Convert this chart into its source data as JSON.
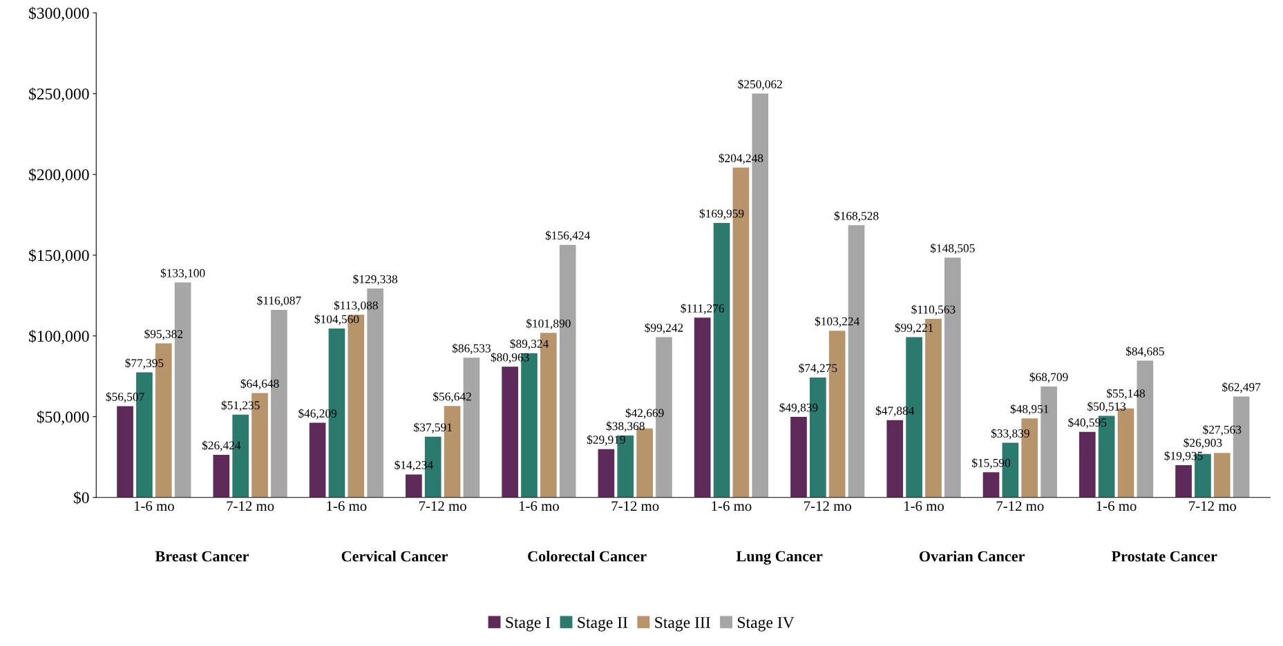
{
  "chart_data": {
    "type": "bar",
    "categories": [
      "1-6 mo",
      "7-12 mo",
      "1-6 mo",
      "7-12 mo",
      "1-6 mo",
      "7-12 mo",
      "1-6 mo",
      "7-12 mo",
      "1-6 mo",
      "7-12 mo",
      "1-6 mo",
      "7-12 mo"
    ],
    "annotations": [
      "Breast Cancer",
      "Cervical Cancer",
      "Colorectal Cancer",
      "Lung Cancer",
      "Ovarian Cancer",
      "Prostate Cancer"
    ],
    "series": [
      {
        "name": "Stage I",
        "color": "#5e2a5a",
        "values": [
          56507,
          26424,
          46209,
          14234,
          80963,
          29919,
          111276,
          49839,
          47884,
          15590,
          40595,
          19935
        ],
        "value_labels": [
          "$56,507",
          "$26,424",
          "$46,209",
          "$14,234",
          "$80,963",
          "$29,919",
          "$111,276",
          "$49,839",
          "$47,884",
          "$15,590",
          "$40,595",
          "$19,935"
        ]
      },
      {
        "name": "Stage II",
        "color": "#2a7a6e",
        "values": [
          77395,
          51235,
          104560,
          37591,
          89324,
          38368,
          169959,
          74275,
          99221,
          33839,
          50513,
          26903
        ],
        "value_labels": [
          "$77,395",
          "$51,235",
          "$104,560",
          "$37,591",
          "$89,324",
          "$38,368",
          "$169,959",
          "$74,275",
          "$99,221",
          "$33,839",
          "$50,513",
          "$26,903"
        ]
      },
      {
        "name": "Stage III",
        "color": "#b8946a",
        "values": [
          95382,
          64648,
          113088,
          56642,
          101890,
          42669,
          204248,
          103224,
          110563,
          48951,
          55148,
          27563
        ],
        "value_labels": [
          "$95,382",
          "$64,648",
          "$113,088",
          "$56,642",
          "$101,890",
          "$42,669",
          "$204,248",
          "$103,224",
          "$110,563",
          "$48,951",
          "$55,148",
          "$27,563"
        ]
      },
      {
        "name": "Stage IV",
        "color": "#a6a6a6",
        "values": [
          133100,
          116087,
          129338,
          86533,
          156424,
          99242,
          250062,
          168528,
          148505,
          68709,
          84685,
          62497
        ],
        "value_labels": [
          "$133,100",
          "$116,087",
          "$129,338",
          "$86,533",
          "$156,424",
          "$99,242",
          "$250,062",
          "$168,528",
          "$148,505",
          "$68,709",
          "$84,685",
          "$62,497"
        ]
      }
    ],
    "ylim": [
      0,
      300000
    ],
    "yticks": [
      {
        "value": 0,
        "label": "$0"
      },
      {
        "value": 50000,
        "label": "$50,000"
      },
      {
        "value": 100000,
        "label": "$100,000"
      },
      {
        "value": 150000,
        "label": "$150,000"
      },
      {
        "value": 200000,
        "label": "$200,000"
      },
      {
        "value": 250000,
        "label": "$250,000"
      },
      {
        "value": 300000,
        "label": "$300,000"
      }
    ],
    "grid": false,
    "legend": "bottom"
  }
}
